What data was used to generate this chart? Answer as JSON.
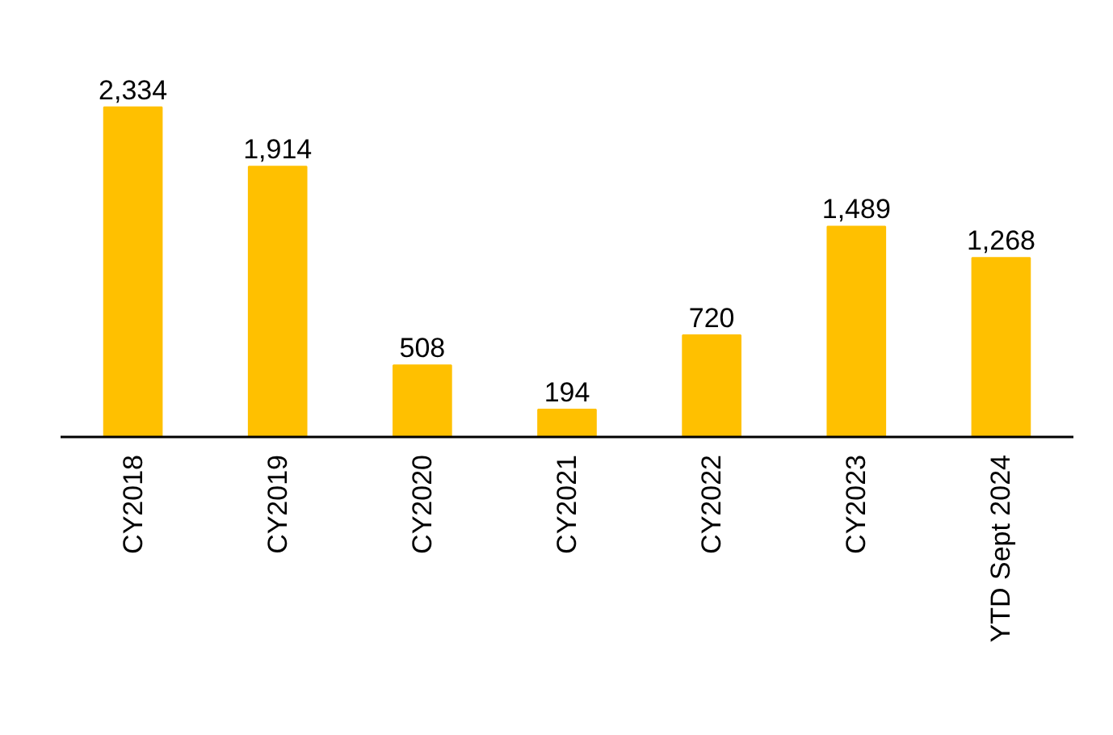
{
  "chart_data": {
    "type": "bar",
    "categories": [
      "CY2018",
      "CY2019",
      "CY2020",
      "CY2021",
      "CY2022",
      "CY2023",
      "YTD Sept 2024"
    ],
    "values": [
      2334,
      1914,
      508,
      194,
      720,
      1489,
      1268
    ],
    "value_labels": [
      "2,334",
      "1,914",
      "508",
      "194",
      "720",
      "1,489",
      "1,268"
    ],
    "color": "#ffc000",
    "grid": false
  }
}
